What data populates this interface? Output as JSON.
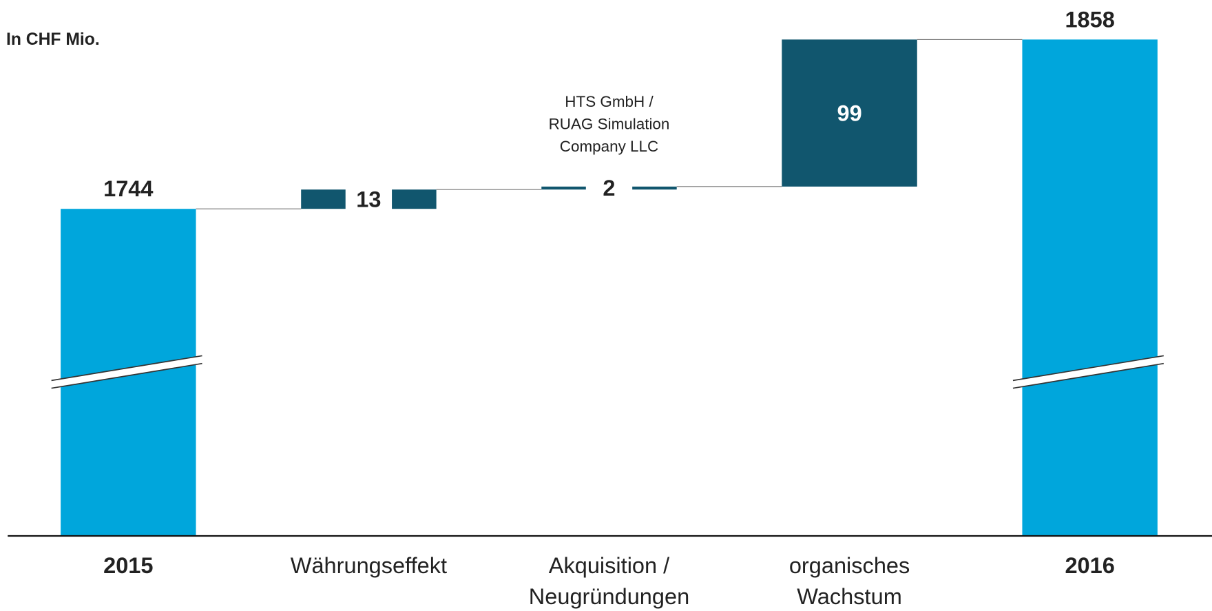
{
  "chart_data": {
    "type": "waterfall",
    "subtitle": "In CHF Mio.",
    "categories": [
      "2015",
      "Währungseffekt",
      "Akquisition / Neugründungen",
      "organisches Wachstum",
      "2016"
    ],
    "values": [
      1744,
      13,
      2,
      99,
      1858
    ],
    "colors": [
      "#00a6dc",
      "#11566e",
      "#11566e",
      "#11566e",
      "#00a6dc"
    ],
    "annotation": "HTS GmbH / RUAG Simulation Company LLC"
  }
}
